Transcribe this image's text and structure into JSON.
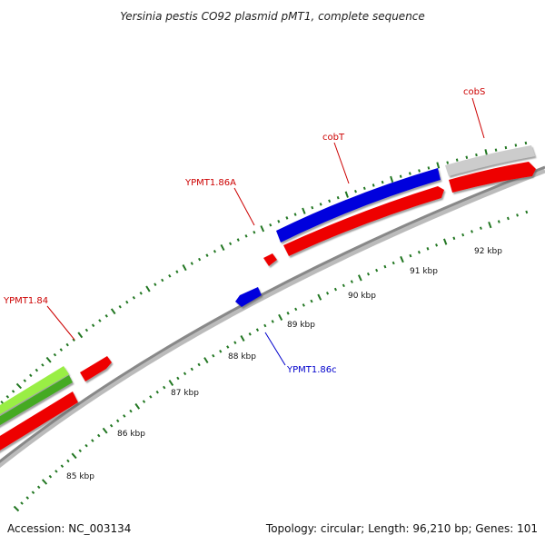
{
  "title": "Yersinia pestis CO92 plasmid pMT1, complete sequence",
  "accession": "Accession: NC_003134",
  "summary": "Topology: circular; Length: 96,210 bp; Genes: 101",
  "scale_labels": [
    "85 kbp",
    "86 kbp",
    "87 kbp",
    "88 kbp",
    "89 kbp",
    "90 kbp",
    "91 kbp",
    "92 kbp"
  ],
  "genes": [
    {
      "name": "YPMT1.84",
      "color": "#cc0000"
    },
    {
      "name": "YPMT1.86A",
      "color": "#cc0000"
    },
    {
      "name": "cobT",
      "color": "#cc0000"
    },
    {
      "name": "cobS",
      "color": "#cc0000"
    },
    {
      "name": "YPMT1.86c",
      "color": "#0000cc"
    }
  ],
  "colors": {
    "forward_cds": "#ee0000",
    "reverse_cds": "#0000dd",
    "gc_green": "#44aa22",
    "gc_light_green": "#99ee44",
    "unknown": "#cccccc",
    "tick_green": "#227722",
    "backbone": "#888888"
  }
}
